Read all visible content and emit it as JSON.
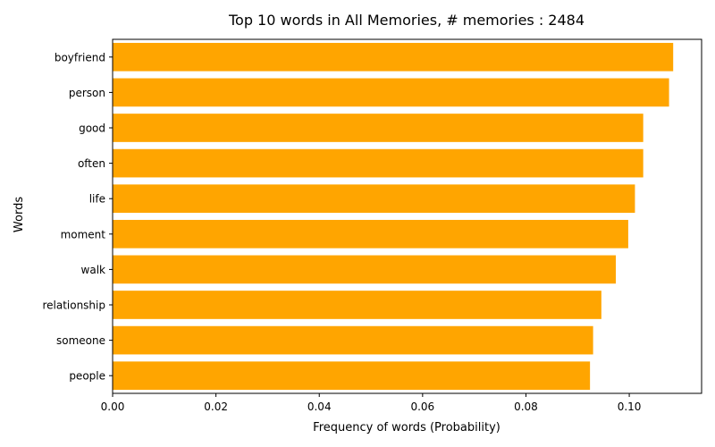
{
  "chart_data": {
    "type": "bar",
    "orientation": "horizontal",
    "title": "Top 10 words in All Memories, # memories : 2484",
    "xlabel": "Frequency of words (Probability)",
    "ylabel": "Words",
    "categories": [
      "boyfriend",
      "person",
      "good",
      "often",
      "life",
      "moment",
      "walk",
      "relationship",
      "someone",
      "people"
    ],
    "values": [
      0.1085,
      0.1077,
      0.1027,
      0.1027,
      0.1011,
      0.0998,
      0.0974,
      0.0946,
      0.093,
      0.0924
    ],
    "xlim": [
      0,
      0.114
    ],
    "xticks": [
      "0.00",
      "0.02",
      "0.04",
      "0.06",
      "0.08",
      "0.10"
    ],
    "xtick_values": [
      0,
      0.02,
      0.04,
      0.06,
      0.08,
      0.1
    ],
    "bar_color": "#ffa500",
    "grid": false,
    "legend": "none"
  }
}
